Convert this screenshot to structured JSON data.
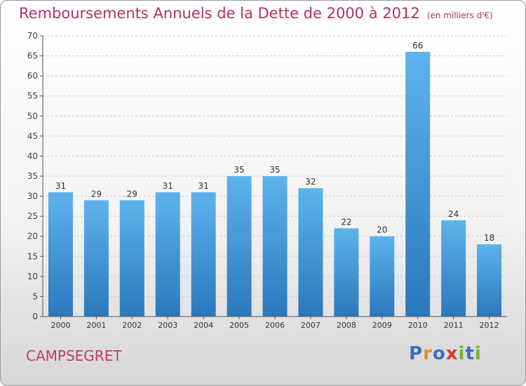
{
  "title": "Remboursements Annuels de la Dette de 2000 à 2012",
  "unit": "(en milliers d'€)",
  "place": "CAMPSEGRET",
  "logo": {
    "text": "Proxiti",
    "colors": [
      "#3a6fc4",
      "#e8901c",
      "#3a6fc4",
      "#d43a2a",
      "#7ab03a",
      "#3a6fc4",
      "#7ab03a"
    ]
  },
  "chart_data": {
    "type": "bar",
    "categories": [
      "2000",
      "2001",
      "2002",
      "2003",
      "2004",
      "2005",
      "2006",
      "2007",
      "2008",
      "2009",
      "2010",
      "2011",
      "2012"
    ],
    "values": [
      31,
      29,
      29,
      31,
      31,
      35,
      35,
      32,
      22,
      20,
      66,
      24,
      18
    ],
    "ylim": [
      0,
      70
    ],
    "yticks": [
      0,
      5,
      10,
      15,
      20,
      25,
      30,
      35,
      40,
      45,
      50,
      55,
      60,
      65,
      70
    ],
    "grid": "horizontal dashed",
    "bar_color": "#4a9ee0"
  }
}
